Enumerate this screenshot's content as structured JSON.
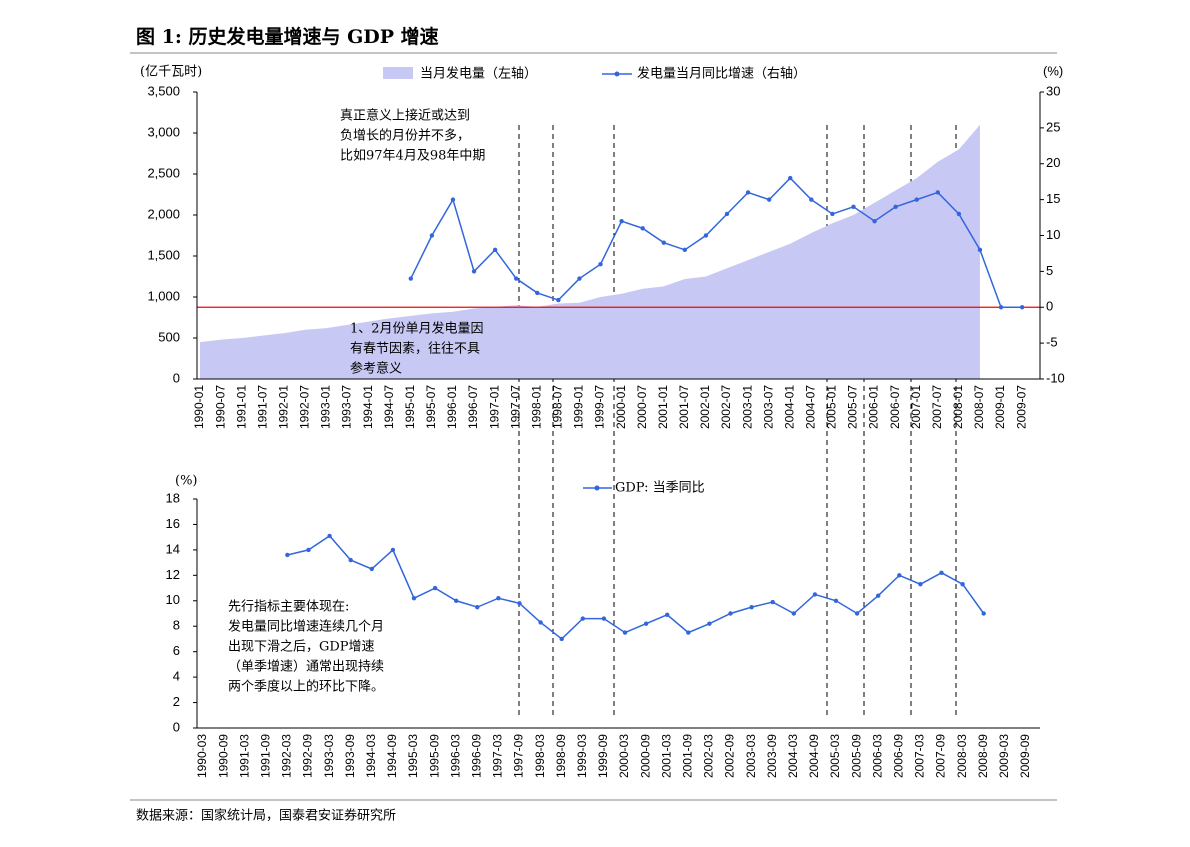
{
  "title": "图 1:  历史发电量增速与 GDP 增速",
  "source": "数据来源：国家统计局，国泰君安证券研究所",
  "chart_data": [
    {
      "type": "combo",
      "y_unit": "(亿千瓦时)",
      "y2_unit": "(%)",
      "categories": [
        "1990-01",
        "1990-07",
        "1991-01",
        "1991-07",
        "1992-01",
        "1992-07",
        "1993-01",
        "1993-07",
        "1994-01",
        "1994-07",
        "1995-01",
        "1995-07",
        "1996-01",
        "1996-07",
        "1997-01",
        "1997-07",
        "1998-01",
        "1998-07",
        "1999-01",
        "1999-07",
        "2000-01",
        "2000-07",
        "2001-01",
        "2001-07",
        "2002-01",
        "2002-07",
        "2003-01",
        "2003-07",
        "2004-01",
        "2004-07",
        "2005-01",
        "2005-07",
        "2006-01",
        "2006-07",
        "2007-01",
        "2007-07",
        "2008-01",
        "2008-07",
        "2009-01",
        "2009-07"
      ],
      "series": [
        {
          "name": "当月发电量（左轴）",
          "kind": "area",
          "color": "#c8c8f4",
          "values": [
            450,
            480,
            500,
            530,
            560,
            600,
            620,
            660,
            700,
            740,
            770,
            800,
            820,
            860,
            880,
            900,
            880,
            920,
            930,
            1000,
            1040,
            1100,
            1130,
            1220,
            1250,
            1350,
            1450,
            1550,
            1650,
            1780,
            1900,
            2000,
            2150,
            2300,
            2450,
            2650,
            2800,
            3100,
            null,
            null
          ]
        },
        {
          "name": "发电量当月同比增速（右轴）",
          "kind": "line",
          "axis": "y2",
          "color": "#3366dd",
          "values": [
            null,
            null,
            null,
            null,
            null,
            null,
            null,
            null,
            null,
            null,
            4,
            10,
            15,
            5,
            8,
            4,
            2,
            1,
            4,
            6,
            12,
            11,
            9,
            8,
            10,
            13,
            16,
            15,
            18,
            15,
            13,
            14,
            12,
            14,
            15,
            16,
            13,
            8,
            0,
            0
          ]
        }
      ],
      "ylim": [
        0,
        3500
      ],
      "yticks": [
        0,
        500,
        {
          "value": 1000,
          "label": "1,000"
        },
        {
          "value": 1500,
          "label": "1,500"
        },
        {
          "value": 2000,
          "label": "2,000"
        },
        {
          "value": 2500,
          "label": "2,500"
        },
        {
          "value": 3000,
          "label": "3,000"
        },
        {
          "value": 3500,
          "label": "3,500"
        }
      ],
      "y2lim": [
        -10,
        30
      ],
      "y2ticks": [
        -10,
        -5,
        0,
        5,
        10,
        15,
        20,
        25,
        30
      ],
      "refline": {
        "value": 0,
        "color": "#ff0000"
      },
      "annotations": [
        {
          "lines": [
            "真正意义上接近或达到",
            "负增长的月份并不多，",
            "比如97年4月及98年中期"
          ]
        },
        {
          "lines": [
            "1、2月份单月发电量因",
            "有春节因素，往往不具",
            "参考意义"
          ]
        }
      ]
    },
    {
      "type": "line",
      "y_unit": "(%)",
      "categories": [
        "1990-03",
        "1990-09",
        "1991-03",
        "1991-09",
        "1992-03",
        "1992-09",
        "1993-03",
        "1993-09",
        "1994-03",
        "1994-09",
        "1995-03",
        "1995-09",
        "1996-03",
        "1996-09",
        "1997-03",
        "1997-09",
        "1998-03",
        "1998-09",
        "1999-03",
        "1999-09",
        "2000-03",
        "2000-09",
        "2001-03",
        "2001-09",
        "2002-03",
        "2002-09",
        "2003-03",
        "2003-09",
        "2004-03",
        "2004-09",
        "2005-03",
        "2005-09",
        "2006-03",
        "2006-09",
        "2007-03",
        "2007-09",
        "2008-03",
        "2008-09",
        "2009-03",
        "2009-09"
      ],
      "series": [
        {
          "name": "GDP: 当季同比",
          "color": "#3366dd",
          "values": [
            null,
            null,
            null,
            null,
            13.6,
            14.0,
            15.1,
            13.2,
            12.5,
            14.0,
            10.2,
            11.0,
            10.0,
            9.5,
            10.2,
            9.8,
            8.3,
            7.0,
            8.6,
            8.6,
            7.5,
            8.2,
            8.9,
            7.5,
            8.2,
            9.0,
            9.5,
            9.9,
            9.0,
            10.5,
            10.0,
            9.0,
            10.4,
            12.0,
            11.3,
            12.2,
            11.3,
            9.0,
            null,
            null
          ]
        }
      ],
      "ylim": [
        0,
        18
      ],
      "yticks": [
        0,
        2,
        4,
        6,
        8,
        10,
        12,
        14,
        16,
        18
      ],
      "annotations": [
        {
          "lines": [
            "先行指标主要体现在:",
            "发电量同比增速连续几个月",
            "出现下滑之后，GDP增速",
            "（单季增速）通常出现持续",
            "两个季度以上的环比下降。"
          ]
        }
      ]
    }
  ]
}
